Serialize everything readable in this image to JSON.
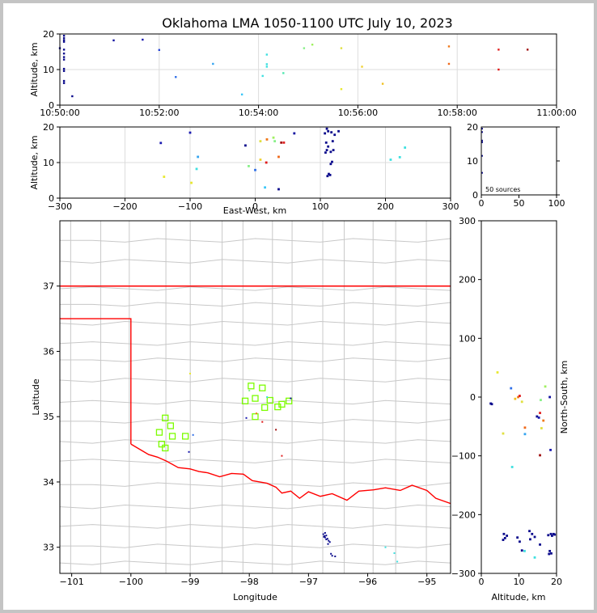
{
  "title": "Oklahoma LMA 1050-1100 UTC July 10, 2023",
  "colors": {
    "frame": "#c4c4c4",
    "grid": "#dcdcdc",
    "state_line": "#ff0000",
    "county": "#c8c8c8",
    "density": "#7cfc00"
  },
  "chart_data": [
    {
      "id": "time-altitude",
      "type": "scatter",
      "xlabel": "",
      "ylabel": "Altitude, km",
      "xlim": [
        "10:50:00",
        "11:00:00"
      ],
      "ylim": [
        0,
        20
      ],
      "xticks": [
        "10:50:00",
        "10:52:00",
        "10:54:00",
        "10:56:00",
        "10:58:00",
        "11:00:00"
      ],
      "yticks": [
        "0",
        "10",
        "20"
      ],
      "grid": true,
      "points": [
        {
          "t": "10:50:05",
          "alt": 19.5,
          "c": "#0a0a8c"
        },
        {
          "t": "10:50:05",
          "alt": 18.8,
          "c": "#0a0a8c"
        },
        {
          "t": "10:50:05",
          "alt": 18.2,
          "c": "#0a0a8c"
        },
        {
          "t": "10:50:05",
          "alt": 17.8,
          "c": "#0a0a8c"
        },
        {
          "t": "10:50:05",
          "alt": 15.6,
          "c": "#0a0a8c"
        },
        {
          "t": "10:50:05",
          "alt": 14.5,
          "c": "#0a0a8c"
        },
        {
          "t": "10:50:05",
          "alt": 13.5,
          "c": "#0a0a8c"
        },
        {
          "t": "10:50:05",
          "alt": 12.8,
          "c": "#0a0a8c"
        },
        {
          "t": "10:50:05",
          "alt": 10.2,
          "c": "#0a0a8c"
        },
        {
          "t": "10:50:05",
          "alt": 9.6,
          "c": "#0a0a8c"
        },
        {
          "t": "10:50:05",
          "alt": 6.8,
          "c": "#0a0a8c"
        },
        {
          "t": "10:50:05",
          "alt": 6.2,
          "c": "#0a0a8c"
        },
        {
          "t": "10:50:00",
          "alt": 16.0,
          "c": "#0a0a8c"
        },
        {
          "t": "10:50:15",
          "alt": 2.5,
          "c": "#0a0a8c"
        },
        {
          "t": "10:51:05",
          "alt": 18.2,
          "c": "#1010a0"
        },
        {
          "t": "10:51:40",
          "alt": 18.4,
          "c": "#1a1ab0"
        },
        {
          "t": "10:52:00",
          "alt": 15.5,
          "c": "#2a48d8"
        },
        {
          "t": "10:52:20",
          "alt": 7.9,
          "c": "#2f6fe8"
        },
        {
          "t": "10:53:05",
          "alt": 11.6,
          "c": "#34a4f0"
        },
        {
          "t": "10:53:40",
          "alt": 3.0,
          "c": "#38c6f8"
        },
        {
          "t": "10:54:10",
          "alt": 14.2,
          "c": "#3ee0e0"
        },
        {
          "t": "10:54:10",
          "alt": 11.5,
          "c": "#3ee0e0"
        },
        {
          "t": "10:54:10",
          "alt": 10.8,
          "c": "#3ee0e0"
        },
        {
          "t": "10:54:05",
          "alt": 8.2,
          "c": "#3ee0e0"
        },
        {
          "t": "10:54:30",
          "alt": 9.0,
          "c": "#50e8b0"
        },
        {
          "t": "10:54:55",
          "alt": 16.0,
          "c": "#88f088"
        },
        {
          "t": "10:55:05",
          "alt": 17.0,
          "c": "#a0f060"
        },
        {
          "t": "10:55:40",
          "alt": 16.0,
          "c": "#e0e040"
        },
        {
          "t": "10:55:40",
          "alt": 4.5,
          "c": "#e8e830"
        },
        {
          "t": "10:56:05",
          "alt": 10.8,
          "c": "#f0d030"
        },
        {
          "t": "10:56:30",
          "alt": 6.0,
          "c": "#f0c020"
        },
        {
          "t": "10:57:50",
          "alt": 16.5,
          "c": "#f07818"
        },
        {
          "t": "10:57:50",
          "alt": 11.6,
          "c": "#f06818"
        },
        {
          "t": "10:58:50",
          "alt": 15.6,
          "c": "#e02020"
        },
        {
          "t": "10:58:50",
          "alt": 10.0,
          "c": "#e01818"
        },
        {
          "t": "10:59:25",
          "alt": 15.6,
          "c": "#a01010"
        }
      ]
    },
    {
      "id": "ew-altitude",
      "type": "scatter",
      "xlabel": "East-West, km",
      "ylabel": "Altitude, km",
      "xlim": [
        -300,
        300
      ],
      "ylim": [
        0,
        20
      ],
      "xticks": [
        "−300",
        "−200",
        "−100",
        "0",
        "100",
        "200",
        "300"
      ],
      "yticks": [
        "0",
        "10",
        "20"
      ],
      "grid": true,
      "points": [
        {
          "x": -145,
          "alt": 15.5,
          "c": "#1a1ab0"
        },
        {
          "x": -140,
          "alt": 6.0,
          "c": "#e8e830"
        },
        {
          "x": -100,
          "alt": 18.4,
          "c": "#1a1ab0"
        },
        {
          "x": -98,
          "alt": 4.3,
          "c": "#e8e830"
        },
        {
          "x": -88,
          "alt": 11.6,
          "c": "#34a4f0"
        },
        {
          "x": -90,
          "alt": 8.2,
          "c": "#3ee0e0"
        },
        {
          "x": -15,
          "alt": 14.8,
          "c": "#0a0a8c"
        },
        {
          "x": -10,
          "alt": 9.0,
          "c": "#88f088"
        },
        {
          "x": 0,
          "alt": 7.9,
          "c": "#2f6fe8"
        },
        {
          "x": 8,
          "alt": 16.0,
          "c": "#e0e040"
        },
        {
          "x": 8,
          "alt": 10.8,
          "c": "#f0d030"
        },
        {
          "x": 15,
          "alt": 3.0,
          "c": "#38c6f8"
        },
        {
          "x": 17,
          "alt": 10.0,
          "c": "#e01818"
        },
        {
          "x": 18,
          "alt": 16.5,
          "c": "#f07818"
        },
        {
          "x": 28,
          "alt": 17.0,
          "c": "#a0f060"
        },
        {
          "x": 30,
          "alt": 16.0,
          "c": "#88f088"
        },
        {
          "x": 36,
          "alt": 2.5,
          "c": "#0a0a8c"
        },
        {
          "x": 36,
          "alt": 11.6,
          "c": "#f06818"
        },
        {
          "x": 40,
          "alt": 15.6,
          "c": "#a01010"
        },
        {
          "x": 44,
          "alt": 15.6,
          "c": "#e02020"
        },
        {
          "x": 60,
          "alt": 18.2,
          "c": "#1010a0"
        },
        {
          "x": 110,
          "alt": 19.5,
          "c": "#0a0a8c"
        },
        {
          "x": 112,
          "alt": 18.8,
          "c": "#0a0a8c"
        },
        {
          "x": 107,
          "alt": 18.2,
          "c": "#0a0a8c"
        },
        {
          "x": 117,
          "alt": 18.5,
          "c": "#0a0a8c"
        },
        {
          "x": 122,
          "alt": 17.8,
          "c": "#0a0a8c"
        },
        {
          "x": 128,
          "alt": 18.8,
          "c": "#0a0a8c"
        },
        {
          "x": 109,
          "alt": 15.6,
          "c": "#0a0a8c"
        },
        {
          "x": 119,
          "alt": 16.0,
          "c": "#0a0a8c"
        },
        {
          "x": 112,
          "alt": 14.5,
          "c": "#0a0a8c"
        },
        {
          "x": 110,
          "alt": 13.5,
          "c": "#0a0a8c"
        },
        {
          "x": 116,
          "alt": 13.0,
          "c": "#0a0a8c"
        },
        {
          "x": 120,
          "alt": 13.5,
          "c": "#0a0a8c"
        },
        {
          "x": 108,
          "alt": 12.8,
          "c": "#0a0a8c"
        },
        {
          "x": 118,
          "alt": 10.2,
          "c": "#0a0a8c"
        },
        {
          "x": 116,
          "alt": 9.6,
          "c": "#0a0a8c"
        },
        {
          "x": 113,
          "alt": 6.8,
          "c": "#0a0a8c"
        },
        {
          "x": 111,
          "alt": 6.2,
          "c": "#0a0a8c"
        },
        {
          "x": 115,
          "alt": 6.5,
          "c": "#0a0a8c"
        },
        {
          "x": 208,
          "alt": 10.8,
          "c": "#3ee0e0"
        },
        {
          "x": 222,
          "alt": 11.5,
          "c": "#3ee0e0"
        },
        {
          "x": 230,
          "alt": 14.2,
          "c": "#3ee0e0"
        }
      ]
    },
    {
      "id": "altitude-histogram",
      "type": "scatter",
      "xlabel": "",
      "ylabel": "",
      "xlim": [
        0,
        100
      ],
      "ylim": [
        0,
        20
      ],
      "xticks": [
        "0",
        "50",
        "100"
      ],
      "yticks": [
        "0",
        "10",
        "20"
      ],
      "annotation": "50 sources",
      "points": [
        {
          "n": 1,
          "alt": 19.5
        },
        {
          "n": 1,
          "alt": 18.5
        },
        {
          "n": 1,
          "alt": 16.0
        },
        {
          "n": 1,
          "alt": 15.5
        },
        {
          "n": 1,
          "alt": 11.5
        },
        {
          "n": 1,
          "alt": 6.5
        }
      ]
    },
    {
      "id": "plan-view",
      "type": "scatter",
      "xlabel": "Longitude",
      "ylabel": "Latitude",
      "xlim": [
        -101.2,
        -94.6
      ],
      "ylim": [
        32.6,
        38.0
      ],
      "xticks": [
        "−101",
        "−100",
        "−99",
        "−98",
        "−97",
        "−96",
        "−95"
      ],
      "yticks": [
        "33",
        "34",
        "35",
        "36",
        "37"
      ],
      "density_boxes": [
        {
          "lon": -97.97,
          "lat": 35.47
        },
        {
          "lon": -97.78,
          "lat": 35.44
        },
        {
          "lon": -98.07,
          "lat": 35.24
        },
        {
          "lon": -97.9,
          "lat": 35.28
        },
        {
          "lon": -97.65,
          "lat": 35.25
        },
        {
          "lon": -97.33,
          "lat": 35.24
        },
        {
          "lon": -97.74,
          "lat": 35.14
        },
        {
          "lon": -97.52,
          "lat": 35.15
        },
        {
          "lon": -97.45,
          "lat": 35.19
        },
        {
          "lon": -97.9,
          "lat": 35.0
        },
        {
          "lon": -99.42,
          "lat": 34.98
        },
        {
          "lon": -99.33,
          "lat": 34.86
        },
        {
          "lon": -99.52,
          "lat": 34.76
        },
        {
          "lon": -99.3,
          "lat": 34.7
        },
        {
          "lon": -99.08,
          "lat": 34.7
        },
        {
          "lon": -99.48,
          "lat": 34.58
        },
        {
          "lon": -99.42,
          "lat": 34.52
        }
      ],
      "points": [
        {
          "lon": -96.75,
          "lat": 33.2,
          "c": "#0a0a8c"
        },
        {
          "lon": -96.72,
          "lat": 33.15,
          "c": "#0a0a8c"
        },
        {
          "lon": -96.7,
          "lat": 33.18,
          "c": "#0a0a8c"
        },
        {
          "lon": -96.68,
          "lat": 33.13,
          "c": "#0a0a8c"
        },
        {
          "lon": -96.66,
          "lat": 33.1,
          "c": "#0a0a8c"
        },
        {
          "lon": -96.72,
          "lat": 33.22,
          "c": "#0a0a8c"
        },
        {
          "lon": -96.73,
          "lat": 33.17,
          "c": "#0a0a8c"
        },
        {
          "lon": -96.7,
          "lat": 33.12,
          "c": "#0a0a8c"
        },
        {
          "lon": -96.64,
          "lat": 33.08,
          "c": "#0a0a8c"
        },
        {
          "lon": -96.62,
          "lat": 32.9,
          "c": "#0a0a8c"
        },
        {
          "lon": -96.6,
          "lat": 32.87,
          "c": "#0a0a8c"
        },
        {
          "lon": -96.55,
          "lat": 32.86,
          "c": "#0a0a8c"
        },
        {
          "lon": -96.67,
          "lat": 33.05,
          "c": "#0a0a8c"
        },
        {
          "lon": -96.74,
          "lat": 33.16,
          "c": "#0a0a8c"
        },
        {
          "lon": -99.0,
          "lat": 35.66,
          "c": "#e8e830"
        },
        {
          "lon": -98.95,
          "lat": 34.72,
          "c": "#2f6fe8"
        },
        {
          "lon": -99.02,
          "lat": 34.46,
          "c": "#1a1ab0"
        },
        {
          "lon": -98.05,
          "lat": 34.98,
          "c": "#1a1ab0"
        },
        {
          "lon": -97.3,
          "lat": 35.28,
          "c": "#1010a0"
        },
        {
          "lon": -97.45,
          "lat": 34.4,
          "c": "#e02020"
        },
        {
          "lon": -97.78,
          "lat": 34.92,
          "c": "#e01818"
        },
        {
          "lon": -97.55,
          "lat": 34.8,
          "c": "#a01010"
        },
        {
          "lon": -97.88,
          "lat": 35.05,
          "c": "#f07818"
        },
        {
          "lon": -97.7,
          "lat": 35.3,
          "c": "#3ee0e0"
        },
        {
          "lon": -95.7,
          "lat": 33.0,
          "c": "#3ee0e0"
        },
        {
          "lon": -95.55,
          "lat": 32.91,
          "c": "#3ee0e0"
        },
        {
          "lon": -95.5,
          "lat": 32.78,
          "c": "#3ee0e0"
        },
        {
          "lon": -98.0,
          "lat": 35.4,
          "c": "#88f088"
        }
      ]
    },
    {
      "id": "altitude-ns",
      "type": "scatter",
      "xlabel": "Altitude, km",
      "ylabel": "North-South, km",
      "xlim": [
        0,
        20
      ],
      "ylim": [
        -300,
        300
      ],
      "xticks": [
        "0",
        "10",
        "20"
      ],
      "yticks": [
        "−300",
        "−200",
        "−100",
        "0",
        "100",
        "200",
        "300"
      ],
      "points": [
        {
          "alt": 2.5,
          "y": -11,
          "c": "#0a0a8c"
        },
        {
          "alt": 2.8,
          "y": -12,
          "c": "#0a0a8c"
        },
        {
          "alt": 4.3,
          "y": 42,
          "c": "#e8e830"
        },
        {
          "alt": 5.8,
          "y": -62,
          "c": "#e0e040"
        },
        {
          "alt": 7.9,
          "y": 15,
          "c": "#2f6fe8"
        },
        {
          "alt": 8.2,
          "y": -119,
          "c": "#3ee0e0"
        },
        {
          "alt": 9.0,
          "y": -3,
          "c": "#f0c020"
        },
        {
          "alt": 9.8,
          "y": 0,
          "c": "#f07818"
        },
        {
          "alt": 10.2,
          "y": 2,
          "c": "#e01818"
        },
        {
          "alt": 10.8,
          "y": -8,
          "c": "#e0e040"
        },
        {
          "alt": 11.6,
          "y": -52,
          "c": "#f06818"
        },
        {
          "alt": 11.6,
          "y": -63,
          "c": "#34a4f0"
        },
        {
          "alt": 14.8,
          "y": -33,
          "c": "#0a0a8c"
        },
        {
          "alt": 15.3,
          "y": -35,
          "c": "#1a1ab0"
        },
        {
          "alt": 15.6,
          "y": -27,
          "c": "#e02020"
        },
        {
          "alt": 15.6,
          "y": -99,
          "c": "#a01010"
        },
        {
          "alt": 15.8,
          "y": -5,
          "c": "#88f088"
        },
        {
          "alt": 16.0,
          "y": -53,
          "c": "#e0e040"
        },
        {
          "alt": 16.5,
          "y": -40,
          "c": "#f07818"
        },
        {
          "alt": 17.0,
          "y": 18,
          "c": "#a0f060"
        },
        {
          "alt": 18.2,
          "y": 0,
          "c": "#1010a0"
        },
        {
          "alt": 18.4,
          "y": -90,
          "c": "#1a1ab0"
        },
        {
          "alt": 6.0,
          "y": -233,
          "c": "#0a0a8c"
        },
        {
          "alt": 6.3,
          "y": -240,
          "c": "#0a0a8c"
        },
        {
          "alt": 6.8,
          "y": -236,
          "c": "#0a0a8c"
        },
        {
          "alt": 5.8,
          "y": -243,
          "c": "#0a0a8c"
        },
        {
          "alt": 9.6,
          "y": -239,
          "c": "#0a0a8c"
        },
        {
          "alt": 10.2,
          "y": -246,
          "c": "#0a0a8c"
        },
        {
          "alt": 10.8,
          "y": -261,
          "c": "#0a0a8c"
        },
        {
          "alt": 11.5,
          "y": -262,
          "c": "#3ee0e0"
        },
        {
          "alt": 12.8,
          "y": -228,
          "c": "#0a0a8c"
        },
        {
          "alt": 13.5,
          "y": -233,
          "c": "#0a0a8c"
        },
        {
          "alt": 13.0,
          "y": -242,
          "c": "#0a0a8c"
        },
        {
          "alt": 14.2,
          "y": -238,
          "c": "#0a0a8c"
        },
        {
          "alt": 14.2,
          "y": -273,
          "c": "#3ee0e0"
        },
        {
          "alt": 15.6,
          "y": -251,
          "c": "#0a0a8c"
        },
        {
          "alt": 17.8,
          "y": -235,
          "c": "#0a0a8c"
        },
        {
          "alt": 18.2,
          "y": -262,
          "c": "#0a0a8c"
        },
        {
          "alt": 18.8,
          "y": -236,
          "c": "#0a0a8c"
        },
        {
          "alt": 19.5,
          "y": -234,
          "c": "#0a0a8c"
        },
        {
          "alt": 18.0,
          "y": -267,
          "c": "#0a0a8c"
        },
        {
          "alt": 18.6,
          "y": -266,
          "c": "#0a0a8c"
        },
        {
          "alt": 19.2,
          "y": -233,
          "c": "#0a0a8c"
        },
        {
          "alt": 18.5,
          "y": -233,
          "c": "#0a0a8c"
        }
      ]
    }
  ]
}
